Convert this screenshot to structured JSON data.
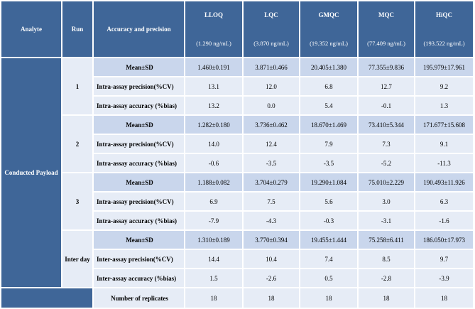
{
  "header": {
    "analyte": "Analyte",
    "run": "Run",
    "accuracy": "Accuracy and precision",
    "levels": [
      {
        "name": "LLOQ",
        "conc": "(1.290 ng/mL)"
      },
      {
        "name": "LQC",
        "conc": "(3.870 ng/mL)"
      },
      {
        "name": "GMQC",
        "conc": "(19.352 ng/mL)"
      },
      {
        "name": "MQC",
        "conc": "(77.409 ng/mL)"
      },
      {
        "name": "HiQC",
        "conc": "(193.522 ng/mL)"
      }
    ]
  },
  "analyte_name": "Conducted Payload",
  "runs": [
    {
      "run": "1",
      "rows": [
        {
          "label": "Mean±SD",
          "values": [
            "1.460±0.191",
            "3.871±0.466",
            "20.405±1.380",
            "77.355±9.836",
            "195.979±17.961"
          ]
        },
        {
          "label": "Intra-assay precision(%CV)",
          "values": [
            "13.1",
            "12.0",
            "6.8",
            "12.7",
            "9.2"
          ]
        },
        {
          "label": "Intra-assay accuracy (%bias)",
          "values": [
            "13.2",
            "0.0",
            "5.4",
            "-0.1",
            "1.3"
          ]
        }
      ]
    },
    {
      "run": "2",
      "rows": [
        {
          "label": "Mean±SD",
          "values": [
            "1.282±0.180",
            "3.736±0.462",
            "18.670±1.469",
            "73.410±5.344",
            "171.677±15.608"
          ]
        },
        {
          "label": "Intra-assay precision(%CV)",
          "values": [
            "14.0",
            "12.4",
            "7.9",
            "7.3",
            "9.1"
          ]
        },
        {
          "label": "Intra-assay accuracy (%bias)",
          "values": [
            "-0.6",
            "-3.5",
            "-3.5",
            "-5.2",
            "-11.3"
          ]
        }
      ]
    },
    {
      "run": "3",
      "rows": [
        {
          "label": "Mean±SD",
          "values": [
            "1.188±0.082",
            "3.704±0.279",
            "19.290±1.084",
            "75.010±2.229",
            "190.493±11.926"
          ]
        },
        {
          "label": "Intra-assay precision(%CV)",
          "values": [
            "6.9",
            "7.5",
            "5.6",
            "3.0",
            "6.3"
          ]
        },
        {
          "label": "Intra-assay accuracy (%bias)",
          "values": [
            "-7.9",
            "-4.3",
            "-0.3",
            "-3.1",
            "-1.6"
          ]
        }
      ]
    },
    {
      "run": "Inter day",
      "rows": [
        {
          "label": "Mean±SD",
          "values": [
            "1.310±0.189",
            "3.770±0.394",
            "19.455±1.444",
            "75.258±6.411",
            "186.050±17.973"
          ]
        },
        {
          "label": "Inter-assay precision(%CV)",
          "values": [
            "14.4",
            "10.4",
            "7.4",
            "8.5",
            "9.7"
          ]
        },
        {
          "label": "Inter-assay accuracy (%bias)",
          "values": [
            "1.5",
            "-2.6",
            "0.5",
            "-2.8",
            "-3.9"
          ]
        }
      ]
    }
  ],
  "footer": {
    "label": "Number of replicates",
    "values": [
      "18",
      "18",
      "18",
      "18",
      "18"
    ]
  }
}
